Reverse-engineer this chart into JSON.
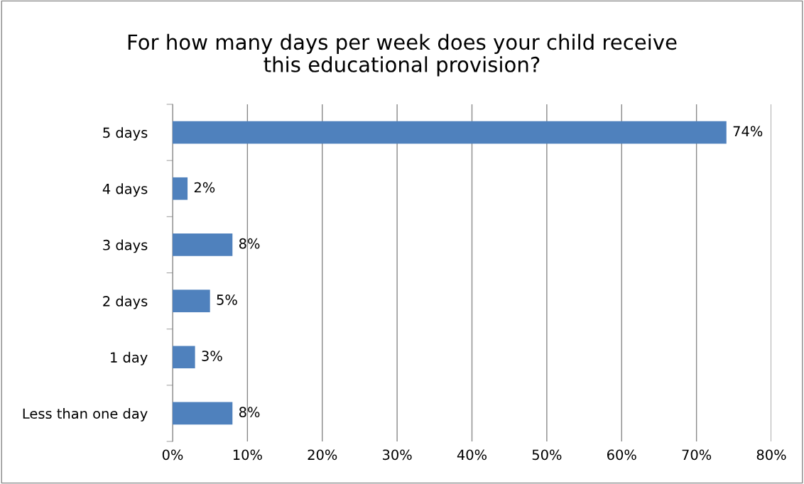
{
  "chart_data": {
    "type": "bar",
    "orientation": "horizontal",
    "title": "For how many days per week does your child receive\nthis educational provision?",
    "categories": [
      "5 days",
      "4 days",
      "3 days",
      "2 days",
      "1 day",
      "Less than one day"
    ],
    "values": [
      74,
      2,
      8,
      5,
      3,
      8
    ],
    "value_labels": [
      "74%",
      "2%",
      "8%",
      "5%",
      "3%",
      "8%"
    ],
    "color": "#4f81bd",
    "xlim": [
      0,
      80
    ],
    "xticks": [
      {
        "value": 0,
        "label": "0%"
      },
      {
        "value": 10,
        "label": "10%"
      },
      {
        "value": 20,
        "label": "20%"
      },
      {
        "value": 30,
        "label": "30%"
      },
      {
        "value": 40,
        "label": "40%"
      },
      {
        "value": 50,
        "label": "50%"
      },
      {
        "value": 60,
        "label": "60%"
      },
      {
        "value": 70,
        "label": "70%"
      },
      {
        "value": 80,
        "label": "80%"
      }
    ],
    "grid": "x",
    "legend": false
  }
}
